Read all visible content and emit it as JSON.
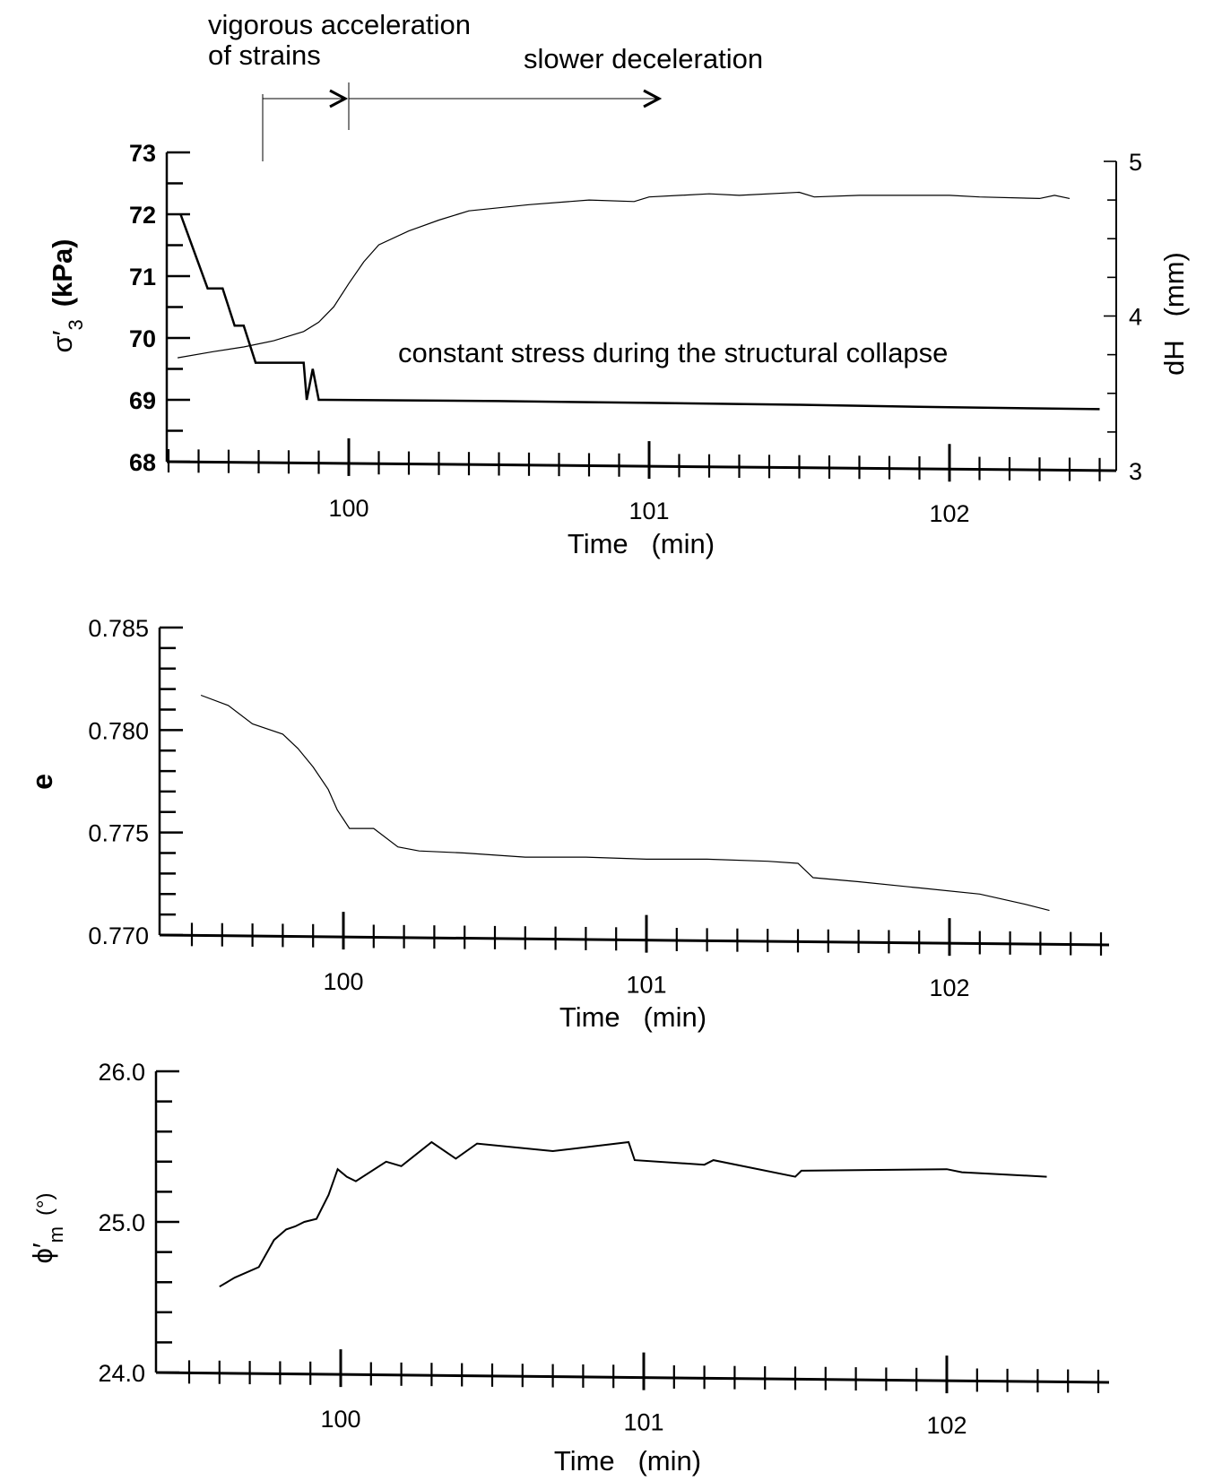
{
  "annotations": {
    "vigorous_line1": "vigorous acceleration",
    "vigorous_line2": "of strains",
    "slower": "slower deceleration",
    "constant": "constant stress during the structural collapse"
  },
  "chart_data": [
    {
      "type": "line",
      "xlabel": "Time   (min)",
      "ylabel_left_symbol": "σ′",
      "ylabel_left_sub": "3",
      "ylabel_left_unit": "(kPa)",
      "ylabel_right": "dH   (mm)",
      "xlim": [
        99.4,
        102.5
      ],
      "ylim_left": [
        68,
        73
      ],
      "ylim_right": [
        3,
        5
      ],
      "x_ticks": [
        100,
        101,
        102
      ],
      "y_ticks_left": [
        68,
        69,
        70,
        71,
        72,
        73
      ],
      "y_ticks_right": [
        3,
        4,
        5
      ],
      "series": [
        {
          "axis": "left",
          "x": [
            99.44,
            99.53,
            99.58,
            99.62,
            99.65,
            99.69,
            99.72,
            99.75,
            99.8,
            99.85,
            99.86,
            99.88,
            99.9,
            99.92,
            100.5,
            101.0,
            101.5,
            102.0,
            102.5
          ],
          "y": [
            72.0,
            70.8,
            70.8,
            70.2,
            70.2,
            69.6,
            69.6,
            69.6,
            69.6,
            69.6,
            69.0,
            69.5,
            69.0,
            69.0,
            68.98,
            68.95,
            68.92,
            68.88,
            68.85
          ]
        },
        {
          "axis": "right",
          "x": [
            99.43,
            99.55,
            99.65,
            99.75,
            99.85,
            99.9,
            99.95,
            100.0,
            100.05,
            100.1,
            100.2,
            100.3,
            100.4,
            100.6,
            100.8,
            100.95,
            101.0,
            101.2,
            101.3,
            101.5,
            101.55,
            101.7,
            102.0,
            102.1,
            102.3,
            102.35,
            102.4
          ],
          "y": [
            3.73,
            3.77,
            3.8,
            3.84,
            3.9,
            3.96,
            4.06,
            4.21,
            4.35,
            4.46,
            4.55,
            4.62,
            4.68,
            4.72,
            4.75,
            4.74,
            4.77,
            4.79,
            4.78,
            4.8,
            4.77,
            4.78,
            4.78,
            4.77,
            4.76,
            4.78,
            4.76
          ]
        }
      ]
    },
    {
      "type": "line",
      "xlabel": "Time   (min)",
      "ylabel": "e",
      "xlim": [
        99.5,
        102.5
      ],
      "ylim": [
        0.77,
        0.785
      ],
      "x_ticks": [
        100,
        101,
        102
      ],
      "y_ticks": [
        "0.770",
        "0.775",
        "0.780",
        "0.785"
      ],
      "series": [
        {
          "x": [
            99.53,
            99.62,
            99.7,
            99.8,
            99.85,
            99.9,
            99.95,
            99.98,
            100.02,
            100.1,
            100.18,
            100.25,
            100.4,
            100.6,
            100.8,
            101.0,
            101.2,
            101.4,
            101.5,
            101.55,
            101.7,
            101.9,
            102.1,
            102.25,
            102.33
          ],
          "y": [
            0.7817,
            0.7812,
            0.7803,
            0.7798,
            0.7791,
            0.7782,
            0.7771,
            0.7761,
            0.7752,
            0.7752,
            0.7743,
            0.7741,
            0.774,
            0.7738,
            0.7738,
            0.7737,
            0.7737,
            0.7736,
            0.7735,
            0.7728,
            0.7726,
            0.7723,
            0.772,
            0.7715,
            0.7712
          ]
        }
      ]
    },
    {
      "type": "line",
      "xlabel": "Time   (min)",
      "ylabel_symbol": "ϕ′",
      "ylabel_sub": "m",
      "ylabel_unit": "(°)",
      "xlim": [
        99.5,
        102.5
      ],
      "ylim": [
        24,
        26
      ],
      "x_ticks": [
        100,
        101,
        102
      ],
      "y_ticks": [
        "24.0",
        "25.0",
        "26.0"
      ],
      "series": [
        {
          "x": [
            99.6,
            99.65,
            99.73,
            99.78,
            99.82,
            99.85,
            99.88,
            99.92,
            99.96,
            99.99,
            100.02,
            100.05,
            100.15,
            100.2,
            100.3,
            100.38,
            100.45,
            100.7,
            100.95,
            100.97,
            101.2,
            101.23,
            101.5,
            101.52,
            102.0,
            102.05,
            102.33
          ],
          "y": [
            24.57,
            24.63,
            24.7,
            24.88,
            24.95,
            24.97,
            25.0,
            25.02,
            25.18,
            25.35,
            25.3,
            25.27,
            25.4,
            25.37,
            25.53,
            25.42,
            25.52,
            25.47,
            25.53,
            25.41,
            25.38,
            25.41,
            25.3,
            25.34,
            25.35,
            25.33,
            25.3
          ]
        }
      ]
    }
  ]
}
